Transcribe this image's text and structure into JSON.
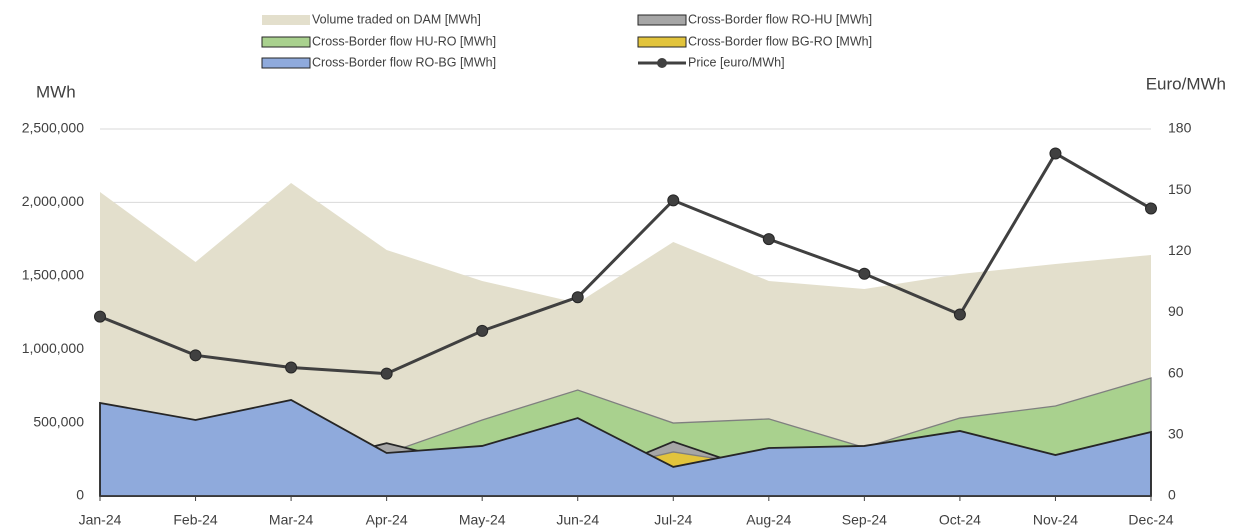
{
  "chart_data": {
    "type": "area",
    "categories": [
      "Jan-24",
      "Feb-24",
      "Mar-24",
      "Apr-24",
      "May-24",
      "Jun-24",
      "Jul-24",
      "Aug-24",
      "Sep-24",
      "Oct-24",
      "Nov-24",
      "Dec-24"
    ],
    "y_label": "MWh",
    "y2_label": "Euro/MWh",
    "ylim": [
      0,
      2500000
    ],
    "yticks": [
      0,
      {
        "value": 500000,
        "label": "500,000"
      },
      {
        "value": 1000000,
        "label": "1,000,000"
      },
      {
        "value": 1500000,
        "label": "1,500,000"
      },
      {
        "value": 2000000,
        "label": "2,000,000"
      },
      {
        "value": 2500000,
        "label": "2,500,000"
      }
    ],
    "y2lim": [
      0,
      180
    ],
    "y2ticks": [
      0,
      30,
      60,
      90,
      120,
      150,
      180
    ],
    "grid": true,
    "series": [
      {
        "name": "Volume traded on DAM [MWh]",
        "color": "#e3dfcc",
        "values": [
          2071000,
          1594000,
          2132000,
          1676000,
          1465000,
          1315000,
          1730000,
          1465000,
          1410000,
          1512000,
          1580000,
          1642000
        ]
      },
      {
        "name": "Cross-Border flow HU-RO [MWh]",
        "color": "#a9d18e",
        "values": [
          0,
          0,
          0,
          290000,
          518000,
          722000,
          497000,
          525000,
          330000,
          531000,
          613000,
          804000
        ]
      },
      {
        "name": "Cross-Border flow RO-HU [MWh]",
        "color": "#a6a6a6",
        "values": [
          0,
          0,
          200000,
          360000,
          200000,
          100000,
          370000,
          150000,
          0,
          0,
          0,
          0
        ]
      },
      {
        "name": "Cross-Border flow BG-RO [MWh]",
        "color": "#e2c43c",
        "values": [
          0,
          0,
          0,
          0,
          0,
          150000,
          300000,
          200000,
          0,
          0,
          0,
          0
        ]
      },
      {
        "name": "Cross-Border flow RO-BG [MWh]",
        "color": "#8faadc",
        "values": [
          634000,
          518000,
          654000,
          293000,
          341000,
          531000,
          198000,
          327000,
          341000,
          443000,
          279000,
          436000
        ]
      },
      {
        "name": "Price [euro/MWh]",
        "type": "line",
        "axis": "y2",
        "color": "#404040",
        "values": [
          88,
          69,
          63,
          60,
          81,
          97.5,
          145,
          126,
          109,
          89,
          168,
          141
        ]
      }
    ]
  }
}
